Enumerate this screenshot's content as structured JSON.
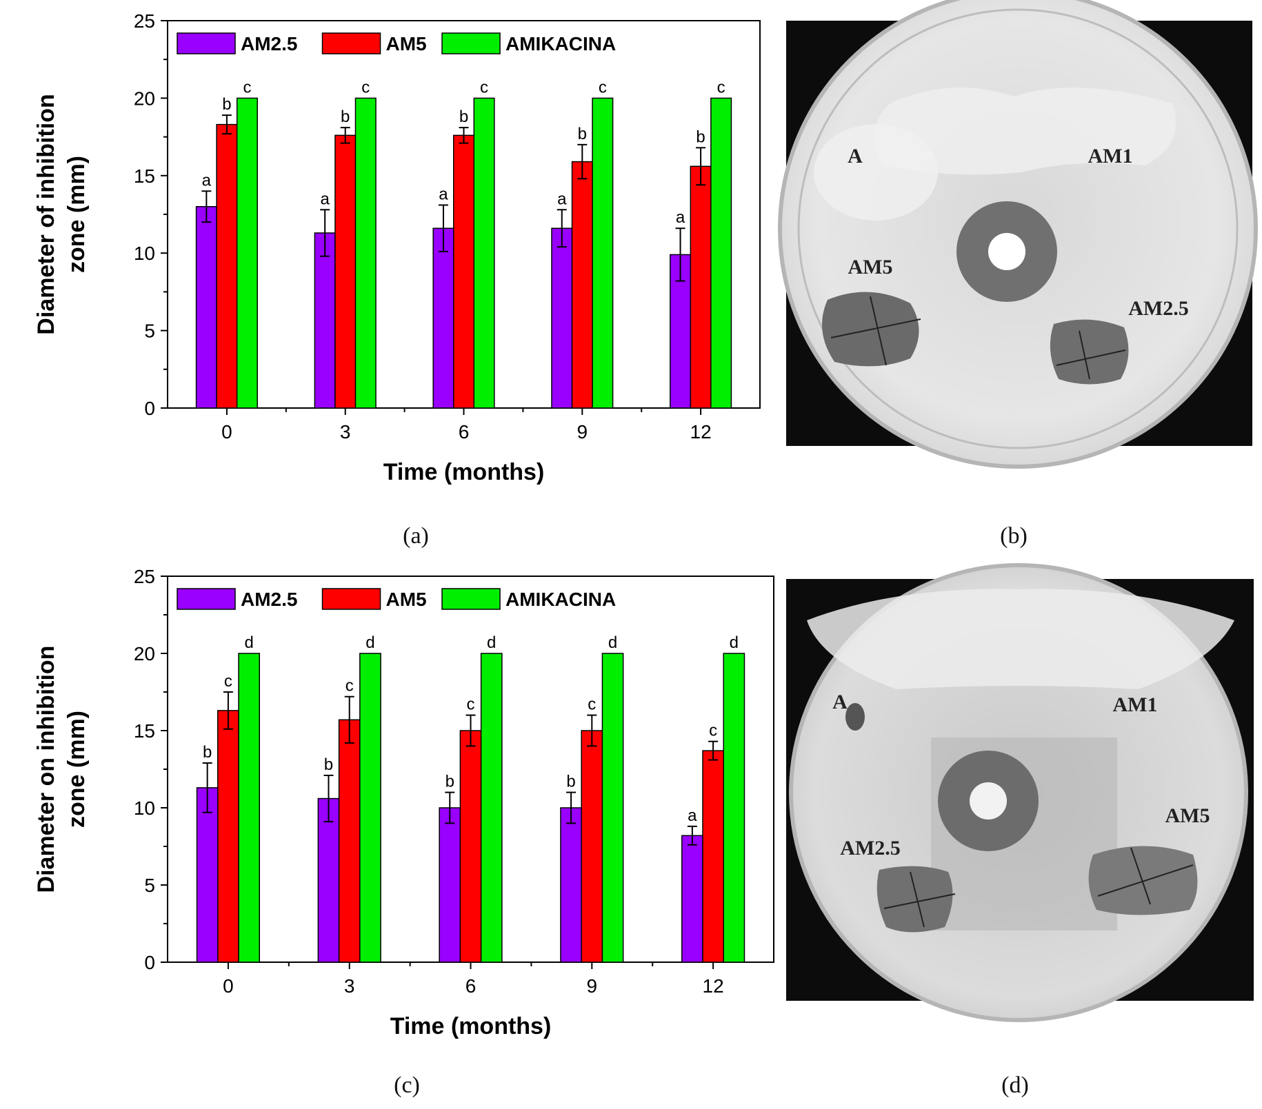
{
  "panels": [
    {
      "label": "(a)"
    },
    {
      "label": "(b)",
      "plate_labels": [
        "A",
        "AM1",
        "AM5",
        "AM2.5"
      ]
    },
    {
      "label": "(c)"
    },
    {
      "label": "(d)",
      "plate_labels": [
        "A",
        "AM1",
        "AM2.5",
        "AM5"
      ]
    }
  ],
  "colors": {
    "AM2.5": "#9900ff",
    "AM5": "#ff0000",
    "AMIKACINA": "#00ee00"
  },
  "chart_data": [
    {
      "type": "bar",
      "panel": "(a)",
      "xlabel": "Time (months)",
      "ylabel_lines": [
        "Diameter of inhibition",
        "zone (mm)"
      ],
      "ylim": [
        0,
        25
      ],
      "yticks": [
        0,
        5,
        10,
        15,
        20,
        25
      ],
      "legend": "top-left",
      "categories": [
        "0",
        "3",
        "6",
        "9",
        "12"
      ],
      "series": [
        {
          "name": "AM2.5",
          "values": [
            13.0,
            11.3,
            11.6,
            11.6,
            9.9
          ],
          "errors": [
            1.0,
            1.5,
            1.5,
            1.2,
            1.7
          ],
          "letters": [
            "a",
            "a",
            "a",
            "a",
            "a"
          ]
        },
        {
          "name": "AM5",
          "values": [
            18.3,
            17.6,
            17.6,
            15.9,
            15.6
          ],
          "errors": [
            0.6,
            0.5,
            0.5,
            1.1,
            1.2
          ],
          "letters": [
            "b",
            "b",
            "b",
            "b",
            "b"
          ]
        },
        {
          "name": "AMIKACINA",
          "values": [
            20,
            20,
            20,
            20,
            20
          ],
          "errors": [
            0,
            0,
            0,
            0,
            0
          ],
          "letters": [
            "c",
            "c",
            "c",
            "c",
            "c"
          ]
        }
      ]
    },
    {
      "type": "bar",
      "panel": "(c)",
      "xlabel": "Time (months)",
      "ylabel_lines": [
        "Diameter on inhibition",
        "zone (mm)"
      ],
      "ylim": [
        0,
        25
      ],
      "yticks": [
        0,
        5,
        10,
        15,
        20,
        25
      ],
      "legend": "top-left",
      "categories": [
        "0",
        "3",
        "6",
        "9",
        "12"
      ],
      "series": [
        {
          "name": "AM2.5",
          "values": [
            11.3,
            10.6,
            10.0,
            10.0,
            8.2
          ],
          "errors": [
            1.6,
            1.5,
            1.0,
            1.0,
            0.6
          ],
          "letters": [
            "b",
            "b",
            "b",
            "b",
            "a"
          ]
        },
        {
          "name": "AM5",
          "values": [
            16.3,
            15.7,
            15.0,
            15.0,
            13.7
          ],
          "errors": [
            1.2,
            1.5,
            1.0,
            1.0,
            0.6
          ],
          "letters": [
            "c",
            "c",
            "c",
            "c",
            "c"
          ]
        },
        {
          "name": "AMIKACINA",
          "values": [
            20,
            20,
            20,
            20,
            20
          ],
          "errors": [
            0,
            0,
            0,
            0,
            0
          ],
          "letters": [
            "d",
            "d",
            "d",
            "d",
            "d"
          ]
        }
      ]
    }
  ]
}
